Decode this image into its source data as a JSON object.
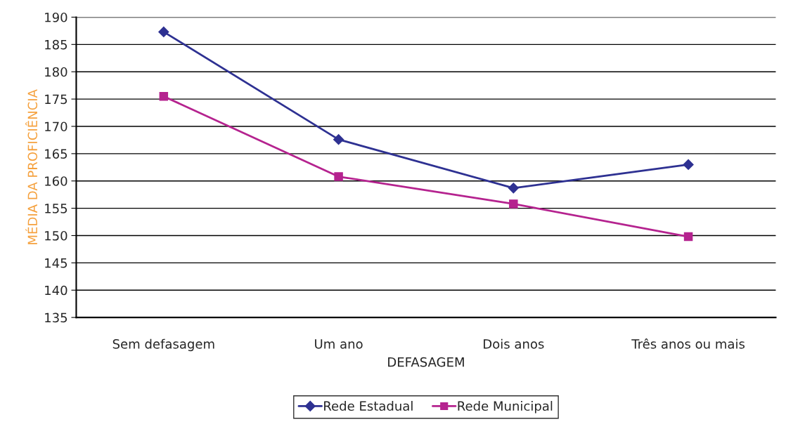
{
  "chart_data": {
    "type": "line",
    "xlabel": "DEFASAGEM",
    "ylabel": "MÉDIA DA PROFICIÊNCIA",
    "categories": [
      "Sem defasagem",
      "Um ano",
      "Dois anos",
      "Três anos ou mais"
    ],
    "series": [
      {
        "name": "Rede Estadual",
        "color": "#2e3192",
        "marker": "diamond",
        "values": [
          187.3,
          167.6,
          158.7,
          163.0
        ]
      },
      {
        "name": "Rede Municipal",
        "color": "#b5238f",
        "marker": "square",
        "values": [
          175.5,
          160.8,
          155.8,
          149.8
        ]
      }
    ],
    "ylim": [
      135,
      190
    ],
    "yticks": [
      135,
      140,
      145,
      150,
      155,
      160,
      165,
      170,
      175,
      180,
      185,
      190
    ],
    "grid": "y",
    "legend": "bottom",
    "line_style": "solid"
  }
}
